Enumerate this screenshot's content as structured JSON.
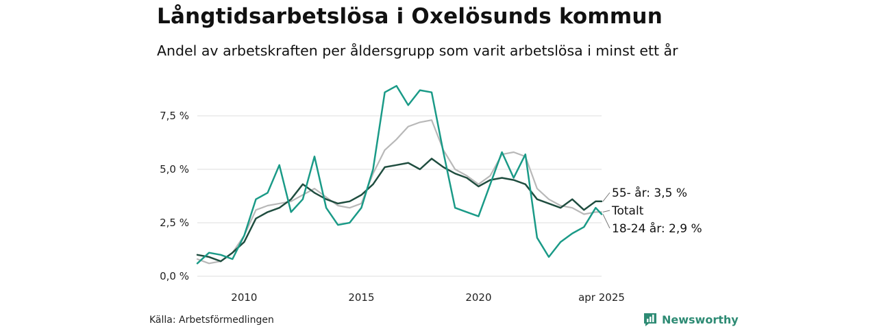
{
  "header": {
    "title": "Långtidsarbetslösa i Oxelösunds kommun",
    "subtitle": "Andel av arbetskraften per åldersgrupp som varit arbetslösa i minst ett år"
  },
  "footer": {
    "source": "Källa: Arbetsförmedlingen",
    "brand": "Newsworthy"
  },
  "colors": {
    "age_55": "#1f4d3f",
    "total": "#b8b8b8",
    "age_18_24": "#1a9a87",
    "grid": "#dddddd"
  },
  "chart_data": {
    "type": "line",
    "title": "Långtidsarbetslösa i Oxelösunds kommun",
    "subtitle": "Andel av arbetskraften per åldersgrupp som varit arbetslösa i minst ett år",
    "ylim": [
      0,
      9.2
    ],
    "xlim": [
      2008.0,
      2025.25
    ],
    "y_ticks": [
      {
        "value": 0,
        "label": "0,0 %"
      },
      {
        "value": 2.5,
        "label": "2,5 %"
      },
      {
        "value": 5,
        "label": "5,0 %"
      },
      {
        "value": 7.5,
        "label": "7,5 %"
      }
    ],
    "x_ticks": [
      {
        "value": 2010,
        "label": "2010"
      },
      {
        "value": 2015,
        "label": "2015"
      },
      {
        "value": 2020,
        "label": "2020"
      },
      {
        "value": 2025.25,
        "label": "apr 2025"
      }
    ],
    "grid": "horizontal",
    "end_labels": [
      {
        "series": "55-",
        "text": "55- år: 3,5 %"
      },
      {
        "series": "Totalt",
        "text": "Totalt"
      },
      {
        "series": "18-24",
        "text": "18-24 år: 2,9 %"
      }
    ],
    "series": [
      {
        "name": "Totalt",
        "color": "#b8b8b8",
        "x": [
          2008.0,
          2008.5,
          2009.0,
          2009.5,
          2010.0,
          2010.5,
          2011.0,
          2011.5,
          2012.0,
          2012.5,
          2013.0,
          2013.5,
          2014.0,
          2014.5,
          2015.0,
          2015.5,
          2016.0,
          2016.5,
          2017.0,
          2017.5,
          2018.0,
          2018.5,
          2019.0,
          2019.5,
          2020.0,
          2020.5,
          2021.0,
          2021.5,
          2022.0,
          2022.5,
          2023.0,
          2023.5,
          2024.0,
          2024.5,
          2025.0,
          2025.25
        ],
        "y": [
          0.8,
          0.6,
          0.7,
          1.1,
          1.9,
          3.1,
          3.3,
          3.4,
          3.5,
          3.8,
          4.1,
          3.7,
          3.3,
          3.2,
          3.4,
          4.8,
          5.9,
          6.4,
          7.0,
          7.2,
          7.3,
          5.9,
          5.0,
          4.7,
          4.3,
          4.7,
          5.7,
          5.8,
          5.6,
          4.1,
          3.6,
          3.3,
          3.2,
          2.9,
          3.0,
          3.0
        ]
      },
      {
        "name": "55- år",
        "color": "#1f4d3f",
        "x": [
          2008.0,
          2008.5,
          2009.0,
          2009.5,
          2010.0,
          2010.5,
          2011.0,
          2011.5,
          2012.0,
          2012.5,
          2013.0,
          2013.5,
          2014.0,
          2014.5,
          2015.0,
          2015.5,
          2016.0,
          2016.5,
          2017.0,
          2017.5,
          2018.0,
          2018.5,
          2019.0,
          2019.5,
          2020.0,
          2020.5,
          2021.0,
          2021.5,
          2022.0,
          2022.5,
          2023.0,
          2023.5,
          2024.0,
          2024.5,
          2025.0,
          2025.25
        ],
        "y": [
          1.0,
          0.9,
          0.7,
          1.1,
          1.6,
          2.7,
          3.0,
          3.2,
          3.6,
          4.3,
          3.9,
          3.6,
          3.4,
          3.5,
          3.8,
          4.3,
          5.1,
          5.2,
          5.3,
          5.0,
          5.5,
          5.1,
          4.8,
          4.6,
          4.2,
          4.5,
          4.6,
          4.5,
          4.3,
          3.6,
          3.4,
          3.2,
          3.6,
          3.1,
          3.5,
          3.5
        ]
      },
      {
        "name": "18-24 år",
        "color": "#1a9a87",
        "x": [
          2008.0,
          2008.5,
          2009.0,
          2009.5,
          2010.0,
          2010.5,
          2011.0,
          2011.5,
          2012.0,
          2012.5,
          2013.0,
          2013.5,
          2014.0,
          2014.5,
          2015.0,
          2015.5,
          2016.0,
          2016.5,
          2017.0,
          2017.5,
          2018.0,
          2018.5,
          2019.0,
          2019.5,
          2020.0,
          2020.5,
          2021.0,
          2021.5,
          2022.0,
          2022.5,
          2023.0,
          2023.5,
          2024.0,
          2024.5,
          2025.0,
          2025.25
        ],
        "y": [
          0.6,
          1.1,
          1.0,
          0.8,
          1.9,
          3.6,
          3.9,
          5.2,
          3.0,
          3.6,
          5.6,
          3.2,
          2.4,
          2.5,
          3.2,
          5.0,
          8.6,
          8.9,
          8.0,
          8.7,
          8.6,
          5.8,
          3.2,
          3.0,
          2.8,
          4.3,
          5.8,
          4.6,
          5.7,
          1.8,
          0.9,
          1.6,
          2.0,
          2.3,
          3.2,
          2.9
        ]
      }
    ]
  }
}
